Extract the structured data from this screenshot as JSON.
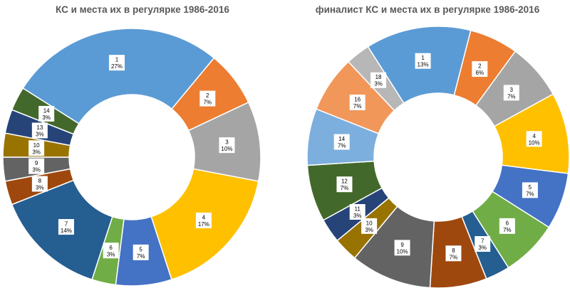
{
  "chart_data": [
    {
      "type": "donut",
      "title": "КС и места их в регулярке 1986-2016",
      "slices": [
        {
          "category": "1",
          "value": 27,
          "label": "27%",
          "color": "#5b9bd5"
        },
        {
          "category": "2",
          "value": 7,
          "label": "7%",
          "color": "#ed7d31"
        },
        {
          "category": "3",
          "value": 10,
          "label": "10%",
          "color": "#a5a5a5"
        },
        {
          "category": "4",
          "value": 17,
          "label": "17%",
          "color": "#ffc000"
        },
        {
          "category": "5",
          "value": 7,
          "label": "7%",
          "color": "#4472c4"
        },
        {
          "category": "6",
          "value": 3,
          "label": "3%",
          "color": "#70ad47"
        },
        {
          "category": "7",
          "value": 14,
          "label": "14%",
          "color": "#255e91"
        },
        {
          "category": "8",
          "value": 3,
          "label": "3%",
          "color": "#9e480e"
        },
        {
          "category": "9",
          "value": 3,
          "label": "3%",
          "color": "#636363"
        },
        {
          "category": "10",
          "value": 3,
          "label": "3%",
          "color": "#997300"
        },
        {
          "category": "13",
          "value": 3,
          "label": "3%",
          "color": "#264478"
        },
        {
          "category": "14",
          "value": 3,
          "label": "3%",
          "color": "#43682b"
        }
      ]
    },
    {
      "type": "donut",
      "title": "финалист КС и места их в регулярке 1986-2016",
      "slices": [
        {
          "category": "1",
          "value": 13,
          "label": "13%",
          "color": "#5b9bd5"
        },
        {
          "category": "2",
          "value": 6,
          "label": "6%",
          "color": "#ed7d31"
        },
        {
          "category": "3",
          "value": 7,
          "label": "7%",
          "color": "#a5a5a5"
        },
        {
          "category": "4",
          "value": 10,
          "label": "10%",
          "color": "#ffc000"
        },
        {
          "category": "5",
          "value": 7,
          "label": "7%",
          "color": "#4472c4"
        },
        {
          "category": "6",
          "value": 7,
          "label": "7%",
          "color": "#70ad47"
        },
        {
          "category": "7",
          "value": 3,
          "label": "3%",
          "color": "#255e91"
        },
        {
          "category": "8",
          "value": 7,
          "label": "7%",
          "color": "#9e480e"
        },
        {
          "category": "9",
          "value": 10,
          "label": "10%",
          "color": "#636363"
        },
        {
          "category": "10",
          "value": 3,
          "label": "3%",
          "color": "#997300"
        },
        {
          "category": "11",
          "value": 3,
          "label": "3%",
          "color": "#264478"
        },
        {
          "category": "12",
          "value": 7,
          "label": "7%",
          "color": "#43682b"
        },
        {
          "category": "14",
          "value": 7,
          "label": "7%",
          "color": "#7cafdd"
        },
        {
          "category": "16",
          "value": 7,
          "label": "7%",
          "color": "#f1975a"
        },
        {
          "category": "18",
          "value": 3,
          "label": "3%",
          "color": "#b7b7b7"
        }
      ]
    }
  ]
}
